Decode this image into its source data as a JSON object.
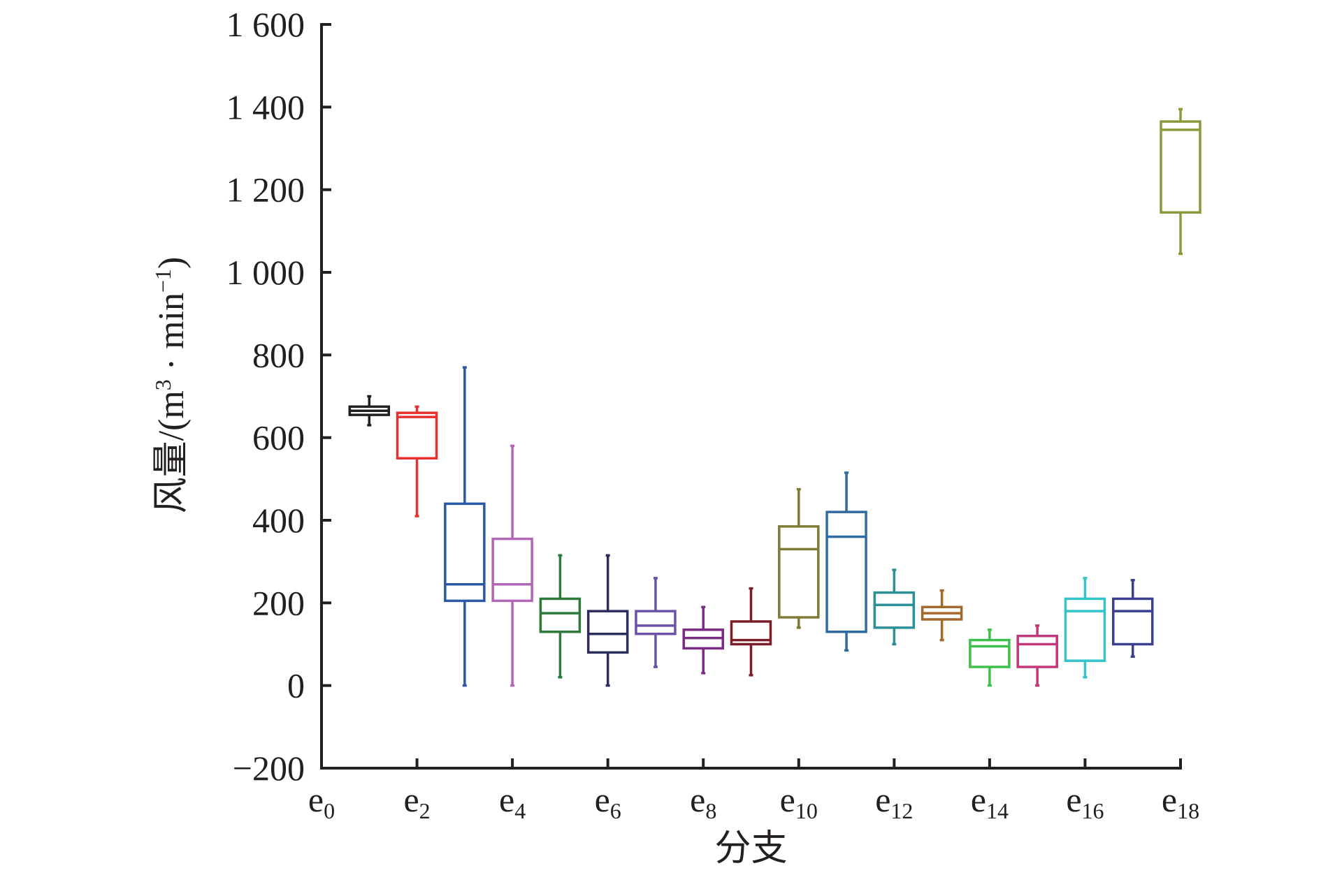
{
  "chart_data": {
    "type": "box",
    "xlabel": "分支",
    "ylabel": "风量/(m³ · min⁻¹)",
    "ylabel_parts": {
      "main": "风量/(m",
      "sup1": "3",
      "mid": " · min",
      "sup2": "−1",
      "end": ")"
    },
    "ylim": [
      -200,
      1600
    ],
    "yticks": [
      -200,
      0,
      200,
      400,
      600,
      800,
      1000,
      1200,
      1400,
      1600
    ],
    "ytick_labels": [
      "−200",
      "0",
      "200",
      "400",
      "600",
      "800",
      "1 000",
      "1 200",
      "1 400",
      "1 600"
    ],
    "xlim": [
      0,
      18
    ],
    "xticks": [
      {
        "pos": 0,
        "label": "e",
        "sub": "0"
      },
      {
        "pos": 2,
        "label": "e",
        "sub": "2"
      },
      {
        "pos": 4,
        "label": "e",
        "sub": "4"
      },
      {
        "pos": 6,
        "label": "e",
        "sub": "6"
      },
      {
        "pos": 8,
        "label": "e",
        "sub": "8"
      },
      {
        "pos": 10,
        "label": "e",
        "sub": "10"
      },
      {
        "pos": 12,
        "label": "e",
        "sub": "12"
      },
      {
        "pos": 14,
        "label": "e",
        "sub": "14"
      },
      {
        "pos": 16,
        "label": "e",
        "sub": "16"
      },
      {
        "pos": 18,
        "label": "e",
        "sub": "18"
      }
    ],
    "boxes": [
      {
        "x": 1,
        "whisker_low": 630,
        "q1": 655,
        "median": 665,
        "q3": 675,
        "whisker_high": 700,
        "color": "#231f20"
      },
      {
        "x": 2,
        "whisker_low": 410,
        "q1": 550,
        "median": 650,
        "q3": 660,
        "whisker_high": 675,
        "color": "#e8312f"
      },
      {
        "x": 3,
        "whisker_low": 0,
        "q1": 205,
        "median": 245,
        "q3": 440,
        "whisker_high": 770,
        "color": "#2a58a8"
      },
      {
        "x": 4,
        "whisker_low": 0,
        "q1": 205,
        "median": 245,
        "q3": 355,
        "whisker_high": 580,
        "color": "#b368b5"
      },
      {
        "x": 5,
        "whisker_low": 20,
        "q1": 130,
        "median": 175,
        "q3": 210,
        "whisker_high": 315,
        "color": "#2d7a3a"
      },
      {
        "x": 6,
        "whisker_low": 0,
        "q1": 80,
        "median": 125,
        "q3": 180,
        "whisker_high": 315,
        "color": "#2b2d5c"
      },
      {
        "x": 7,
        "whisker_low": 45,
        "q1": 125,
        "median": 145,
        "q3": 180,
        "whisker_high": 260,
        "color": "#6a52a8"
      },
      {
        "x": 8,
        "whisker_low": 30,
        "q1": 90,
        "median": 115,
        "q3": 135,
        "whisker_high": 190,
        "color": "#7a2c82"
      },
      {
        "x": 9,
        "whisker_low": 25,
        "q1": 100,
        "median": 110,
        "q3": 155,
        "whisker_high": 235,
        "color": "#7a1f2a"
      },
      {
        "x": 10,
        "whisker_low": 140,
        "q1": 165,
        "median": 330,
        "q3": 385,
        "whisker_high": 475,
        "color": "#7f7a35"
      },
      {
        "x": 11,
        "whisker_low": 85,
        "q1": 130,
        "median": 360,
        "q3": 420,
        "whisker_high": 515,
        "color": "#2f6aa0"
      },
      {
        "x": 12,
        "whisker_low": 100,
        "q1": 140,
        "median": 195,
        "q3": 225,
        "whisker_high": 280,
        "color": "#2a8f96"
      },
      {
        "x": 13,
        "whisker_low": 110,
        "q1": 160,
        "median": 175,
        "q3": 190,
        "whisker_high": 230,
        "color": "#a4682c"
      },
      {
        "x": 14,
        "whisker_low": 0,
        "q1": 45,
        "median": 95,
        "q3": 110,
        "whisker_high": 135,
        "color": "#3fbf4b"
      },
      {
        "x": 15,
        "whisker_low": 0,
        "q1": 45,
        "median": 100,
        "q3": 120,
        "whisker_high": 145,
        "color": "#c2367c"
      },
      {
        "x": 16,
        "whisker_low": 20,
        "q1": 60,
        "median": 180,
        "q3": 210,
        "whisker_high": 260,
        "color": "#32c4c8"
      },
      {
        "x": 17,
        "whisker_low": 70,
        "q1": 100,
        "median": 180,
        "q3": 210,
        "whisker_high": 255,
        "color": "#3a3f8f"
      },
      {
        "x": 18,
        "whisker_low": 1045,
        "q1": 1145,
        "median": 1345,
        "q3": 1365,
        "whisker_high": 1395,
        "color": "#8a9a3a"
      }
    ],
    "grid": false,
    "legend": "none"
  },
  "colors": {
    "axis": "#231f20",
    "background": "#ffffff"
  }
}
